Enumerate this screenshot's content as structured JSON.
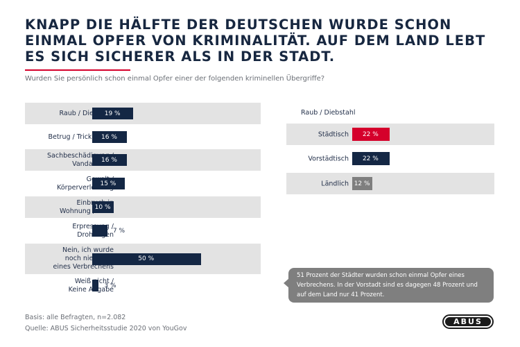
{
  "header": {
    "title": "KNAPP DIE HÄLFTE DER DEUTSCHEN WURDE SCHON EINMAL OPFER VON KRIMINALITÄT. AUF DEM LAND LEBT ES SICH SICHERER ALS IN DER STADT.",
    "subtitle": "Wurden Sie persönlich schon einmal Opfer einer der folgenden kriminellen Übergriffe?"
  },
  "colors": {
    "bar": "#142744",
    "accent_red": "#d5002b",
    "gray_bar": "#7f7f7f",
    "row_shade": "#e3e3e3"
  },
  "chart_data": [
    {
      "type": "bar",
      "orientation": "horizontal",
      "unit": "%",
      "categories": [
        [
          "Raub / Diebstahl"
        ],
        [
          "Betrug / Trickbetrug"
        ],
        [
          "Sachbeschädigung /",
          "Vandalismus"
        ],
        [
          "Gewalt /",
          "Körperverletzung"
        ],
        [
          "Einbruch in",
          "Wohnung / Haus"
        ],
        [
          "Erpressung /",
          "Drohungen"
        ],
        [
          "Nein, ich wurde",
          "noch nie Opfer",
          "eines Verbrechens"
        ],
        [
          "Weiß nicht /",
          "Keine Angabe"
        ]
      ],
      "values": [
        19,
        16,
        16,
        15,
        10,
        7,
        50,
        3
      ],
      "labels": [
        "19 %",
        "16 %",
        "16 %",
        "15 %",
        "10 %",
        "7 %",
        "50 %",
        "3 %"
      ],
      "xlim": [
        0,
        100
      ],
      "grid": false
    },
    {
      "type": "bar",
      "orientation": "horizontal",
      "title": "Raub / Diebstahl",
      "unit": "%",
      "categories": [
        "Städtisch",
        "Vorstädtisch",
        "Ländlich"
      ],
      "values": [
        22,
        22,
        12
      ],
      "labels": [
        "22 %",
        "22 %",
        "12 %"
      ],
      "colors": [
        "#d5002b",
        "#142744",
        "#7f7f7f"
      ],
      "xlim": [
        0,
        100
      ],
      "grid": false
    }
  ],
  "note": {
    "text": "51 Prozent der Städter wurden schon einmal Opfer eines Verbrechens. In der Vorstadt sind es dagegen 48 Prozent und auf dem Land nur 41 Prozent."
  },
  "footer": {
    "basis": "Basis: alle Befragten, n=2.082",
    "source": "Quelle: ABUS Sicherheitsstudie 2020 von YouGov"
  },
  "logo": {
    "text": "ABUS"
  }
}
